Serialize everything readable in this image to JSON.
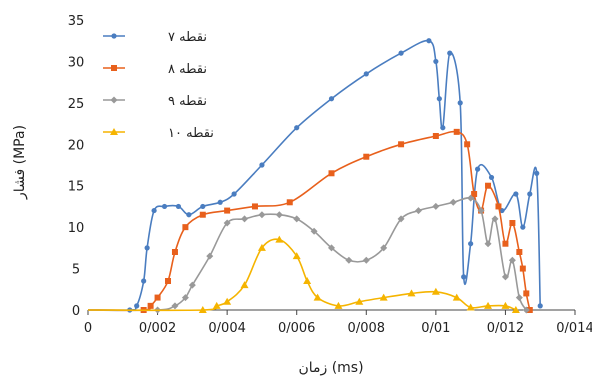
{
  "chart_data": {
    "type": "line",
    "xlabel": "زمان (ms)",
    "ylabel": "فشار (MPa)",
    "xlim": [
      0,
      0.014
    ],
    "ylim": [
      0,
      35
    ],
    "x_ticks": [
      "0",
      "0/002",
      "0/004",
      "0/006",
      "0/008",
      "0/01",
      "0/012",
      "0/014"
    ],
    "y_ticks": [
      "0",
      "5",
      "10",
      "15",
      "20",
      "25",
      "30",
      "35"
    ],
    "grid": false,
    "legend_position": "top-left",
    "series": [
      {
        "name": "نقطه ۷",
        "color": "#4a7dc0",
        "marker": "circle",
        "points": [
          [
            0,
            0
          ],
          [
            0.0012,
            0
          ],
          [
            0.0014,
            0.5
          ],
          [
            0.0016,
            3.5
          ],
          [
            0.0017,
            7.5
          ],
          [
            0.0019,
            12
          ],
          [
            0.0022,
            12.5
          ],
          [
            0.0026,
            12.5
          ],
          [
            0.0029,
            11.5
          ],
          [
            0.0033,
            12.5
          ],
          [
            0.0038,
            13
          ],
          [
            0.0042,
            14
          ],
          [
            0.005,
            17.5
          ],
          [
            0.006,
            22
          ],
          [
            0.007,
            25.5
          ],
          [
            0.008,
            28.5
          ],
          [
            0.009,
            31
          ],
          [
            0.0098,
            32.5
          ],
          [
            0.01,
            30
          ],
          [
            0.0101,
            25.5
          ],
          [
            0.0102,
            22
          ],
          [
            0.0104,
            31
          ],
          [
            0.0107,
            25
          ],
          [
            0.0108,
            4
          ],
          [
            0.011,
            8
          ],
          [
            0.0112,
            17
          ],
          [
            0.0116,
            16
          ],
          [
            0.0119,
            12
          ],
          [
            0.0123,
            14
          ],
          [
            0.0125,
            10
          ],
          [
            0.0127,
            14
          ],
          [
            0.0129,
            16.5
          ],
          [
            0.013,
            0.5
          ]
        ]
      },
      {
        "name": "نقطه ۸",
        "color": "#e8601c",
        "marker": "square",
        "points": [
          [
            0,
            0
          ],
          [
            0.0016,
            0
          ],
          [
            0.0018,
            0.5
          ],
          [
            0.002,
            1.5
          ],
          [
            0.0023,
            3.5
          ],
          [
            0.0025,
            7
          ],
          [
            0.0028,
            10
          ],
          [
            0.0033,
            11.5
          ],
          [
            0.004,
            12
          ],
          [
            0.0048,
            12.5
          ],
          [
            0.0058,
            13
          ],
          [
            0.007,
            16.5
          ],
          [
            0.008,
            18.5
          ],
          [
            0.009,
            20
          ],
          [
            0.01,
            21
          ],
          [
            0.0106,
            21.5
          ],
          [
            0.0109,
            20
          ],
          [
            0.0111,
            14
          ],
          [
            0.0113,
            12
          ],
          [
            0.0115,
            15
          ],
          [
            0.0118,
            12.5
          ],
          [
            0.012,
            8
          ],
          [
            0.0122,
            10.5
          ],
          [
            0.0124,
            7
          ],
          [
            0.0125,
            5
          ],
          [
            0.0126,
            2
          ],
          [
            0.0127,
            0
          ]
        ]
      },
      {
        "name": "نقطه ۹",
        "color": "#999999",
        "marker": "diamond",
        "points": [
          [
            0,
            0
          ],
          [
            0.002,
            0
          ],
          [
            0.0025,
            0.5
          ],
          [
            0.0028,
            1.5
          ],
          [
            0.003,
            3
          ],
          [
            0.0035,
            6.5
          ],
          [
            0.004,
            10.5
          ],
          [
            0.0045,
            11
          ],
          [
            0.005,
            11.5
          ],
          [
            0.0055,
            11.5
          ],
          [
            0.006,
            11
          ],
          [
            0.0065,
            9.5
          ],
          [
            0.007,
            7.5
          ],
          [
            0.0075,
            6
          ],
          [
            0.008,
            6
          ],
          [
            0.0085,
            7.5
          ],
          [
            0.009,
            11
          ],
          [
            0.0095,
            12
          ],
          [
            0.01,
            12.5
          ],
          [
            0.0105,
            13
          ],
          [
            0.011,
            13.5
          ],
          [
            0.0113,
            12
          ],
          [
            0.0115,
            8
          ],
          [
            0.0117,
            11
          ],
          [
            0.012,
            4
          ],
          [
            0.0122,
            6
          ],
          [
            0.0124,
            1.5
          ],
          [
            0.0126,
            0
          ]
        ]
      },
      {
        "name": "نقطه ۱۰",
        "color": "#f5b400",
        "marker": "triangle",
        "points": [
          [
            0,
            0
          ],
          [
            0.0033,
            0
          ],
          [
            0.0037,
            0.5
          ],
          [
            0.004,
            1
          ],
          [
            0.0045,
            3
          ],
          [
            0.005,
            7.5
          ],
          [
            0.0055,
            8.5
          ],
          [
            0.006,
            6.5
          ],
          [
            0.0063,
            3.5
          ],
          [
            0.0066,
            1.5
          ],
          [
            0.0072,
            0.5
          ],
          [
            0.0078,
            1
          ],
          [
            0.0085,
            1.5
          ],
          [
            0.0093,
            2
          ],
          [
            0.01,
            2.2
          ],
          [
            0.0106,
            1.5
          ],
          [
            0.011,
            0.3
          ],
          [
            0.0115,
            0.5
          ],
          [
            0.012,
            0.5
          ],
          [
            0.0123,
            0
          ]
        ]
      }
    ]
  }
}
